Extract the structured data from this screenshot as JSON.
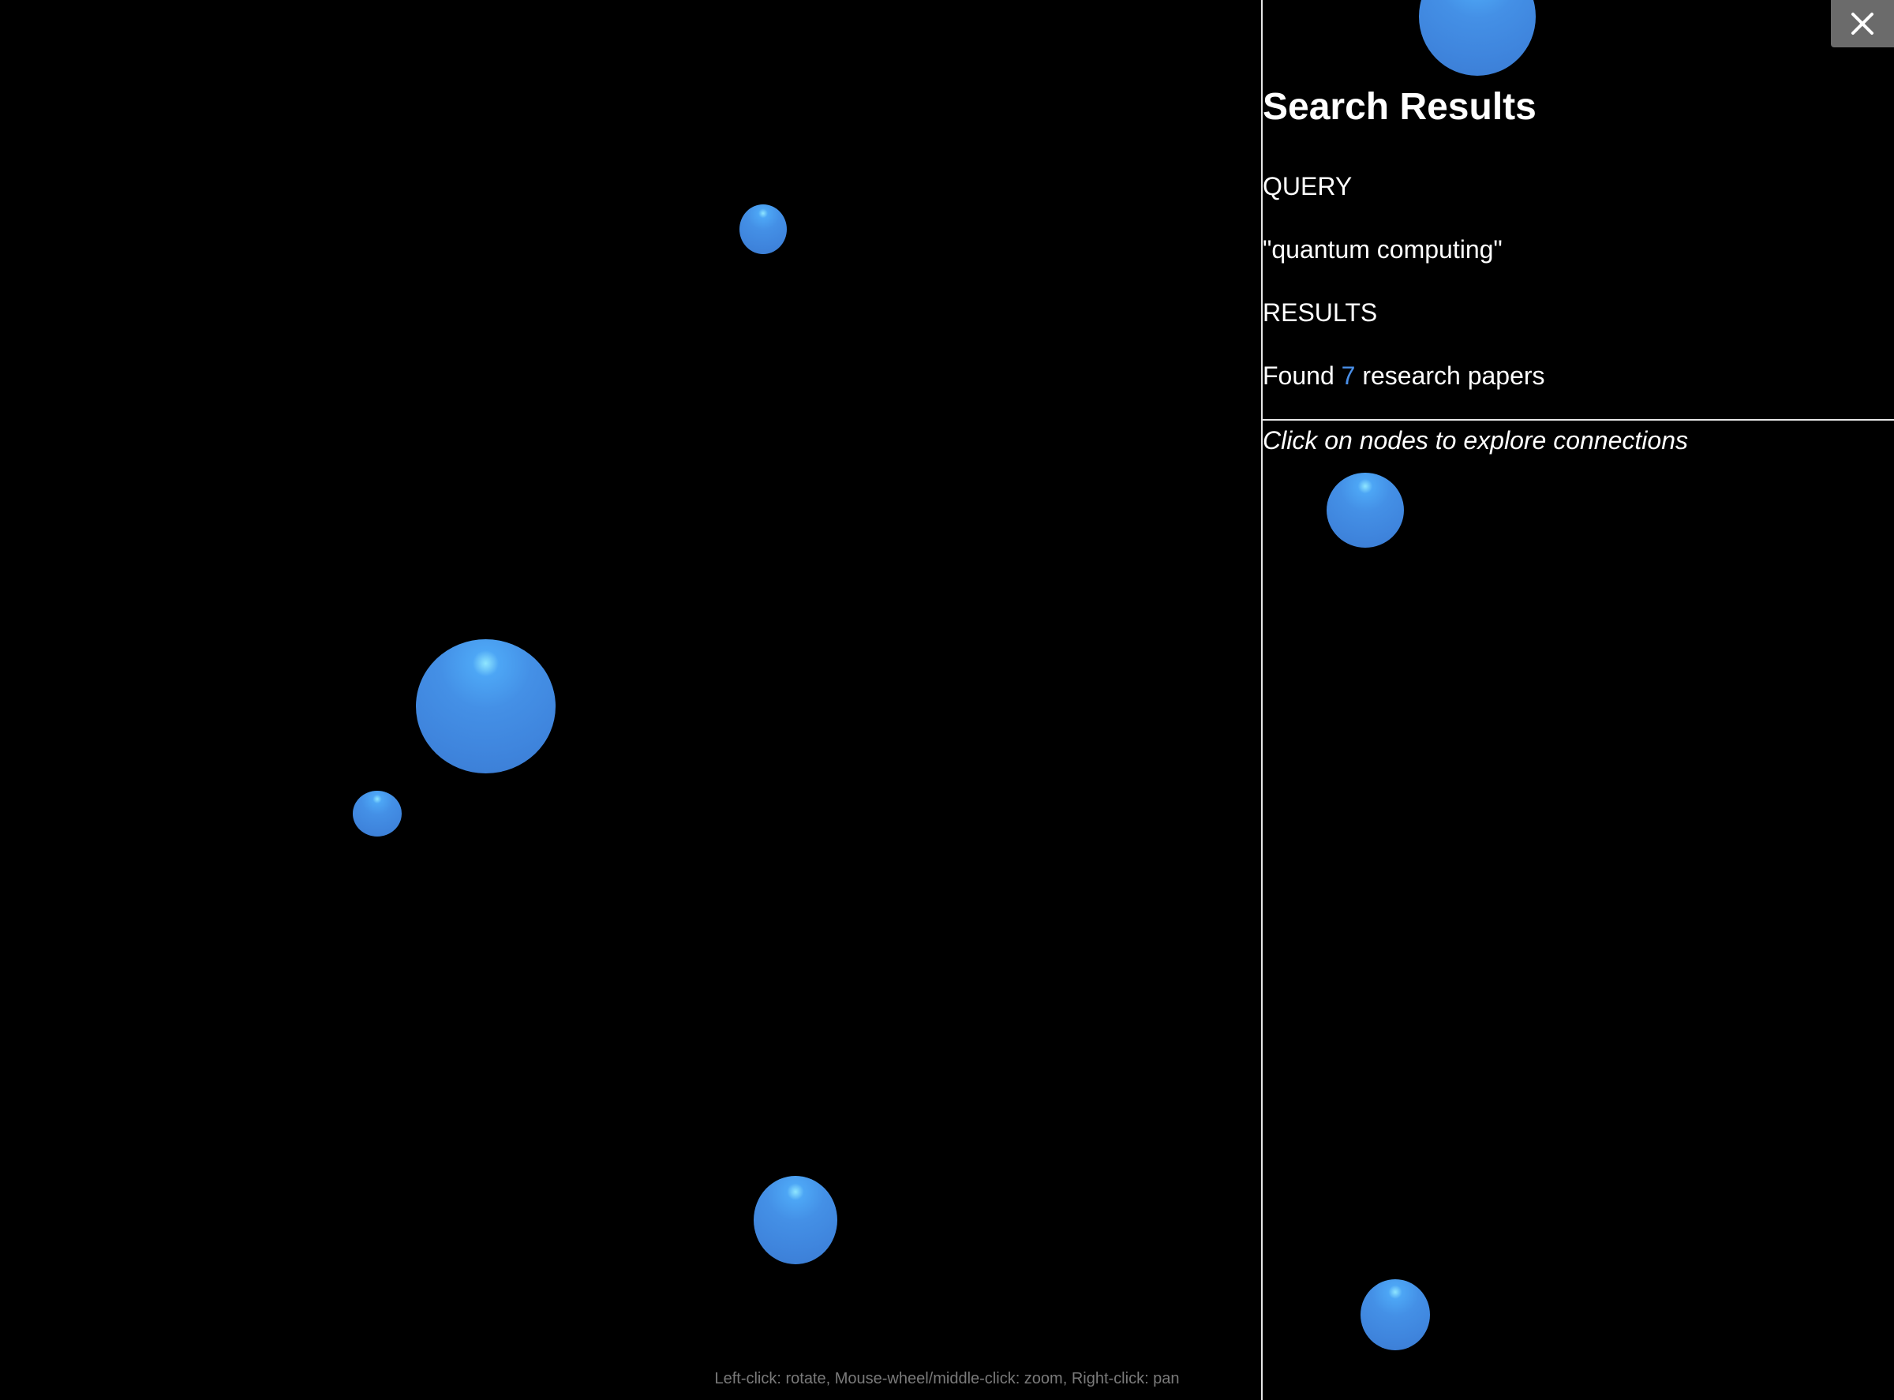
{
  "panel": {
    "title": "Search Results",
    "query_label": "QUERY",
    "query_value": "\"quantum computing\"",
    "results_label": "RESULTS",
    "results_prefix": "Found",
    "results_count": "7",
    "results_suffix": "research papers",
    "hint": "Click on nodes to explore connections"
  },
  "controls_hint": "Left-click: rotate, Mouse-wheel/middle-click: zoom, Right-click: pan",
  "close_icon": "close-icon",
  "colors": {
    "background": "#000000",
    "node": "#4490e6",
    "accent": "#4a8fe7",
    "close_button": "#6b6b6b"
  }
}
